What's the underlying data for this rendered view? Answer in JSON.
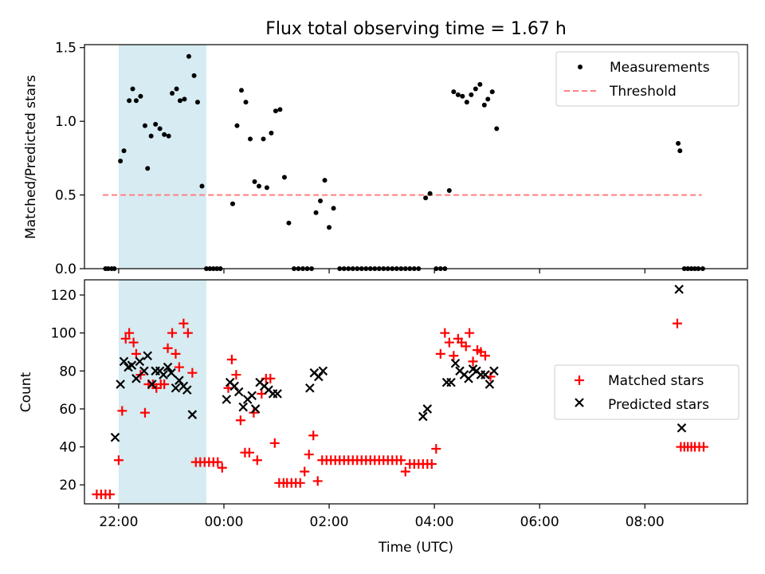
{
  "figure": {
    "title": "Flux total observing time = 1.67 h",
    "xlabel": "Time (UTC)"
  },
  "chart_data": [
    {
      "type": "scatter",
      "title": "Flux total observing time = 1.67 h",
      "ylabel": "Matched/Predicted stars",
      "xlim": [
        21.35,
        9.95
      ],
      "x_units": "hours UTC (values >= 21.35 are on the evening before midnight)",
      "ylim": [
        0,
        1.52
      ],
      "yticks": [
        0.0,
        0.5,
        1.0,
        1.5
      ],
      "yticklabels": [
        "0.0",
        "0.5",
        "1.0",
        "1.5"
      ],
      "shaded_interval": {
        "from": "22:00",
        "to": "23:40",
        "color": "#add8e6"
      },
      "series": [
        {
          "name": "Measurements",
          "marker": "dot",
          "color": "#000000",
          "points": [
            [
              "21:45",
              0
            ],
            [
              "21:48",
              0
            ],
            [
              "21:52",
              0
            ],
            [
              "21:55",
              0
            ],
            [
              "22:02",
              0.73
            ],
            [
              "22:06",
              0.8
            ],
            [
              "22:12",
              1.14
            ],
            [
              "22:16",
              1.22
            ],
            [
              "22:20",
              1.14
            ],
            [
              "22:25",
              1.17
            ],
            [
              "22:30",
              0.97
            ],
            [
              "22:33",
              0.68
            ],
            [
              "22:37",
              0.9
            ],
            [
              "22:42",
              0.98
            ],
            [
              "22:47",
              0.95
            ],
            [
              "22:52",
              0.91
            ],
            [
              "22:57",
              0.9
            ],
            [
              "23:01",
              1.19
            ],
            [
              "23:06",
              1.22
            ],
            [
              "23:10",
              1.14
            ],
            [
              "23:15",
              1.15
            ],
            [
              "23:20",
              1.44
            ],
            [
              "23:26",
              1.31
            ],
            [
              "23:30",
              1.13
            ],
            [
              "23:35",
              0.56
            ],
            [
              "23:40",
              0
            ],
            [
              "23:44",
              0
            ],
            [
              "23:48",
              0
            ],
            [
              "23:52",
              0
            ],
            [
              "23:56",
              0
            ],
            [
              "00:10",
              0.44
            ],
            [
              "00:15",
              0.97
            ],
            [
              "00:20",
              1.21
            ],
            [
              "00:25",
              1.13
            ],
            [
              "00:30",
              0.88
            ],
            [
              "00:35",
              0.59
            ],
            [
              "00:40",
              0.56
            ],
            [
              "00:45",
              0.88
            ],
            [
              "00:49",
              0.55
            ],
            [
              "00:54",
              0.92
            ],
            [
              "00:59",
              1.07
            ],
            [
              "01:04",
              1.08
            ],
            [
              "01:09",
              0.62
            ],
            [
              "01:14",
              0.31
            ],
            [
              "01:20",
              0
            ],
            [
              "01:25",
              0
            ],
            [
              "01:30",
              0
            ],
            [
              "01:35",
              0
            ],
            [
              "01:40",
              0
            ],
            [
              "01:45",
              0.38
            ],
            [
              "01:50",
              0.46
            ],
            [
              "01:55",
              0.6
            ],
            [
              "02:00",
              0.28
            ],
            [
              "02:05",
              0.41
            ],
            [
              "02:12",
              0
            ],
            [
              "02:17",
              0
            ],
            [
              "02:22",
              0
            ],
            [
              "02:27",
              0
            ],
            [
              "02:32",
              0
            ],
            [
              "02:37",
              0
            ],
            [
              "02:42",
              0
            ],
            [
              "02:47",
              0
            ],
            [
              "02:52",
              0
            ],
            [
              "02:57",
              0
            ],
            [
              "03:02",
              0
            ],
            [
              "03:07",
              0
            ],
            [
              "03:12",
              0
            ],
            [
              "03:17",
              0
            ],
            [
              "03:22",
              0
            ],
            [
              "03:27",
              0
            ],
            [
              "03:32",
              0
            ],
            [
              "03:37",
              0
            ],
            [
              "03:42",
              0
            ],
            [
              "03:50",
              0.48
            ],
            [
              "03:55",
              0.51
            ],
            [
              "04:02",
              0
            ],
            [
              "04:07",
              0
            ],
            [
              "04:12",
              0
            ],
            [
              "04:17",
              0.53
            ],
            [
              "04:22",
              1.2
            ],
            [
              "04:27",
              1.18
            ],
            [
              "04:32",
              1.17
            ],
            [
              "04:37",
              1.13
            ],
            [
              "04:42",
              1.18
            ],
            [
              "04:47",
              1.22
            ],
            [
              "04:52",
              1.25
            ],
            [
              "04:57",
              1.11
            ],
            [
              "05:01",
              1.15
            ],
            [
              "05:06",
              1.2
            ],
            [
              "05:11",
              0.95
            ],
            [
              "08:38",
              0.85
            ],
            [
              "08:40",
              0.8
            ],
            [
              "08:45",
              0
            ],
            [
              "08:49",
              0
            ],
            [
              "08:53",
              0
            ],
            [
              "08:57",
              0
            ],
            [
              "09:01",
              0
            ],
            [
              "09:06",
              0
            ]
          ]
        },
        {
          "name": "Threshold",
          "marker": "dashed-line",
          "color": "#ff7f7f",
          "y": 0.5,
          "x_from": "21:42",
          "x_to": "09:05"
        }
      ],
      "legend": "top-right"
    },
    {
      "type": "scatter",
      "ylabel": "Count",
      "xlabel": "Time (UTC)",
      "xlim": [
        21.35,
        9.95
      ],
      "ylim": [
        10,
        128
      ],
      "yticks": [
        20,
        40,
        60,
        80,
        100,
        120
      ],
      "xticks": [
        "22:00",
        "00:00",
        "02:00",
        "04:00",
        "06:00",
        "08:00"
      ],
      "shaded_interval": {
        "from": "22:00",
        "to": "23:40",
        "color": "#add8e6"
      },
      "series": [
        {
          "name": "Matched stars",
          "marker": "plus",
          "color": "#ff0000",
          "points": [
            [
              "21:35",
              15
            ],
            [
              "21:40",
              15
            ],
            [
              "21:45",
              15
            ],
            [
              "21:50",
              15
            ],
            [
              "22:00",
              33
            ],
            [
              "22:04",
              59
            ],
            [
              "22:08",
              97
            ],
            [
              "22:12",
              100
            ],
            [
              "22:17",
              95
            ],
            [
              "22:20",
              89
            ],
            [
              "22:25",
              78
            ],
            [
              "22:30",
              58
            ],
            [
              "22:34",
              73
            ],
            [
              "22:39",
              73
            ],
            [
              "22:43",
              71
            ],
            [
              "22:48",
              73
            ],
            [
              "22:52",
              73
            ],
            [
              "22:56",
              92
            ],
            [
              "23:01",
              100
            ],
            [
              "23:05",
              89
            ],
            [
              "23:09",
              82
            ],
            [
              "23:14",
              105
            ],
            [
              "23:19",
              100
            ],
            [
              "23:24",
              79
            ],
            [
              "23:28",
              32
            ],
            [
              "23:33",
              32
            ],
            [
              "23:38",
              32
            ],
            [
              "23:43",
              32
            ],
            [
              "23:48",
              32
            ],
            [
              "23:53",
              32
            ],
            [
              "23:58",
              29
            ],
            [
              "00:05",
              71
            ],
            [
              "00:09",
              86
            ],
            [
              "00:14",
              78
            ],
            [
              "00:19",
              54
            ],
            [
              "00:24",
              37
            ],
            [
              "00:29",
              37
            ],
            [
              "00:34",
              58
            ],
            [
              "00:38",
              33
            ],
            [
              "00:43",
              68
            ],
            [
              "00:48",
              76
            ],
            [
              "00:53",
              76
            ],
            [
              "00:58",
              42
            ],
            [
              "01:03",
              21
            ],
            [
              "01:08",
              21
            ],
            [
              "01:12",
              21
            ],
            [
              "01:17",
              21
            ],
            [
              "01:22",
              21
            ],
            [
              "01:27",
              21
            ],
            [
              "01:32",
              27
            ],
            [
              "01:37",
              36
            ],
            [
              "01:42",
              46
            ],
            [
              "01:47",
              22
            ],
            [
              "01:52",
              33
            ],
            [
              "01:57",
              33
            ],
            [
              "02:02",
              33
            ],
            [
              "02:07",
              33
            ],
            [
              "02:12",
              33
            ],
            [
              "02:17",
              33
            ],
            [
              "02:22",
              33
            ],
            [
              "02:27",
              33
            ],
            [
              "02:32",
              33
            ],
            [
              "02:37",
              33
            ],
            [
              "02:42",
              33
            ],
            [
              "02:47",
              33
            ],
            [
              "02:52",
              33
            ],
            [
              "02:57",
              33
            ],
            [
              "03:02",
              33
            ],
            [
              "03:07",
              33
            ],
            [
              "03:12",
              33
            ],
            [
              "03:17",
              33
            ],
            [
              "03:22",
              33
            ],
            [
              "03:27",
              27
            ],
            [
              "03:32",
              31
            ],
            [
              "03:37",
              31
            ],
            [
              "03:42",
              31
            ],
            [
              "03:47",
              31
            ],
            [
              "03:52",
              31
            ],
            [
              "03:57",
              31
            ],
            [
              "04:02",
              39
            ],
            [
              "04:07",
              89
            ],
            [
              "04:12",
              100
            ],
            [
              "04:17",
              95
            ],
            [
              "04:22",
              88
            ],
            [
              "04:27",
              97
            ],
            [
              "04:31",
              95
            ],
            [
              "04:36",
              93
            ],
            [
              "04:40",
              100
            ],
            [
              "04:44",
              85
            ],
            [
              "04:49",
              91
            ],
            [
              "04:53",
              90
            ],
            [
              "04:58",
              88
            ],
            [
              "05:04",
              77
            ],
            [
              "08:37",
              105
            ],
            [
              "08:41",
              40
            ],
            [
              "08:45",
              40
            ],
            [
              "08:49",
              40
            ],
            [
              "08:53",
              40
            ],
            [
              "08:57",
              40
            ],
            [
              "09:02",
              40
            ],
            [
              "09:07",
              40
            ]
          ]
        },
        {
          "name": "Predicted stars",
          "marker": "x",
          "color": "#000000",
          "points": [
            [
              "21:56",
              45
            ],
            [
              "22:02",
              73
            ],
            [
              "22:06",
              85
            ],
            [
              "22:11",
              82
            ],
            [
              "22:15",
              83
            ],
            [
              "22:20",
              76
            ],
            [
              "22:24",
              85
            ],
            [
              "22:29",
              80
            ],
            [
              "22:33",
              88
            ],
            [
              "22:38",
              73
            ],
            [
              "22:42",
              80
            ],
            [
              "22:47",
              80
            ],
            [
              "22:51",
              78
            ],
            [
              "22:56",
              82
            ],
            [
              "23:00",
              79
            ],
            [
              "23:05",
              71
            ],
            [
              "23:09",
              75
            ],
            [
              "23:14",
              72
            ],
            [
              "23:18",
              70
            ],
            [
              "23:24",
              57
            ],
            [
              "00:03",
              65
            ],
            [
              "00:07",
              74
            ],
            [
              "00:12",
              72
            ],
            [
              "00:17",
              69
            ],
            [
              "00:22",
              61
            ],
            [
              "00:27",
              65
            ],
            [
              "00:32",
              67
            ],
            [
              "00:36",
              60
            ],
            [
              "00:41",
              74
            ],
            [
              "00:46",
              72
            ],
            [
              "00:51",
              70
            ],
            [
              "00:56",
              68
            ],
            [
              "01:01",
              68
            ],
            [
              "01:38",
              71
            ],
            [
              "01:43",
              79
            ],
            [
              "01:48",
              77
            ],
            [
              "01:53",
              80
            ],
            [
              "03:47",
              56
            ],
            [
              "03:52",
              60
            ],
            [
              "04:14",
              74
            ],
            [
              "04:19",
              74
            ],
            [
              "04:24",
              84
            ],
            [
              "04:29",
              80
            ],
            [
              "04:34",
              78
            ],
            [
              "04:39",
              76
            ],
            [
              "04:44",
              81
            ],
            [
              "04:48",
              80
            ],
            [
              "04:53",
              78
            ],
            [
              "04:58",
              78
            ],
            [
              "05:03",
              73
            ],
            [
              "05:08",
              80
            ],
            [
              "08:39",
              123
            ],
            [
              "08:42",
              50
            ]
          ]
        }
      ],
      "legend": "center-right"
    }
  ]
}
